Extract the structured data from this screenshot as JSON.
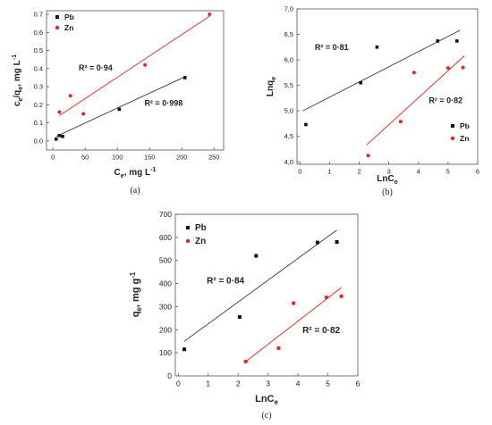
{
  "chart_data": [
    {
      "id": "a",
      "type": "scatter",
      "caption": "(a)",
      "xlabel": "Ce, mg L-1",
      "ylabel": "ce/qe, mg L-1",
      "xlim": [
        -10,
        265
      ],
      "ylim": [
        -0.05,
        0.72
      ],
      "xticks": [
        0,
        50,
        100,
        150,
        200,
        250
      ],
      "yticks": [
        0.0,
        0.1,
        0.2,
        0.3,
        0.4,
        0.5,
        0.6,
        0.7
      ],
      "ytick_decimals": 1,
      "legend": "top-left",
      "series": [
        {
          "name": "Pb",
          "color": "#111111",
          "marker": "square",
          "x": [
            5,
            10,
            15,
            103,
            205
          ],
          "y": [
            0.01,
            0.03,
            0.025,
            0.175,
            0.35
          ],
          "fit": {
            "x": [
              5,
              205
            ],
            "y": [
              0.025,
              0.355
            ]
          },
          "r2": {
            "text": "R² = 0·998",
            "at": [
              142,
              0.195
            ]
          }
        },
        {
          "name": "Zn",
          "color": "#e8261e",
          "marker": "circle",
          "x": [
            10,
            27,
            47,
            143,
            243
          ],
          "y": [
            0.16,
            0.25,
            0.15,
            0.42,
            0.7
          ],
          "fit": {
            "x": [
              10,
              243
            ],
            "y": [
              0.14,
              0.69
            ]
          },
          "r2": {
            "text": "R² = 0·94",
            "at": [
              40,
              0.39
            ]
          }
        }
      ]
    },
    {
      "id": "b",
      "type": "scatter",
      "caption": "(b)",
      "xlabel": "LnCe",
      "ylabel": "Lnqe",
      "xlim": [
        -0.1,
        6.0
      ],
      "ylim": [
        3.95,
        7.0
      ],
      "xticks": [
        0,
        1,
        2,
        3,
        4,
        5,
        6
      ],
      "yticks": [
        4.0,
        4.5,
        5.0,
        5.5,
        6.0,
        6.5,
        7.0
      ],
      "ytick_decimals": 1,
      "ytick_comma": true,
      "legend": "bottom-right",
      "series": [
        {
          "name": "Pb",
          "color": "#111111",
          "marker": "square",
          "x": [
            0.2,
            2.05,
            2.6,
            4.65,
            5.3
          ],
          "y": [
            4.73,
            5.55,
            6.25,
            6.37,
            6.37
          ],
          "fit": {
            "x": [
              0.1,
              5.4
            ],
            "y": [
              5.0,
              6.58
            ]
          },
          "r2": {
            "text": "R² = 0·81",
            "at": [
              0.5,
              6.19
            ]
          }
        },
        {
          "name": "Zn",
          "color": "#e8261e",
          "marker": "circle",
          "x": [
            2.3,
            3.4,
            3.85,
            5.0,
            5.5
          ],
          "y": [
            4.12,
            4.79,
            5.75,
            5.84,
            5.85
          ],
          "fit": {
            "x": [
              2.25,
              5.55
            ],
            "y": [
              4.33,
              6.08
            ]
          },
          "r2": {
            "text": "R² = 0·82",
            "at": [
              4.35,
              5.15
            ]
          }
        }
      ]
    },
    {
      "id": "c",
      "type": "scatter",
      "caption": "(c)",
      "xlabel": "LnCe",
      "ylabel": "qe, mg g-1",
      "xlim": [
        -0.1,
        6.0
      ],
      "ylim": [
        0,
        700
      ],
      "xticks": [
        0,
        1,
        2,
        3,
        4,
        5,
        6
      ],
      "yticks": [
        0,
        100,
        200,
        300,
        400,
        500,
        600,
        700
      ],
      "ytick_decimals": 0,
      "legend": "top-left",
      "series": [
        {
          "name": "Pb",
          "color": "#111111",
          "marker": "square",
          "x": [
            0.2,
            2.05,
            2.6,
            4.65,
            5.3
          ],
          "y": [
            115,
            255,
            520,
            578,
            580
          ],
          "fit": {
            "x": [
              0.2,
              5.3
            ],
            "y": [
              150,
              632
            ]
          },
          "r2": {
            "text": "R² = 0·84",
            "at": [
              0.95,
              400
            ]
          }
        },
        {
          "name": "Zn",
          "color": "#e8261e",
          "marker": "circle",
          "x": [
            2.25,
            3.35,
            3.85,
            4.95,
            5.45
          ],
          "y": [
            62,
            120,
            315,
            340,
            345
          ],
          "fit": {
            "x": [
              2.25,
              5.45
            ],
            "y": [
              62,
              383
            ]
          },
          "r2": {
            "text": "R² = 0·82",
            "at": [
              4.15,
              185
            ]
          }
        }
      ]
    }
  ]
}
